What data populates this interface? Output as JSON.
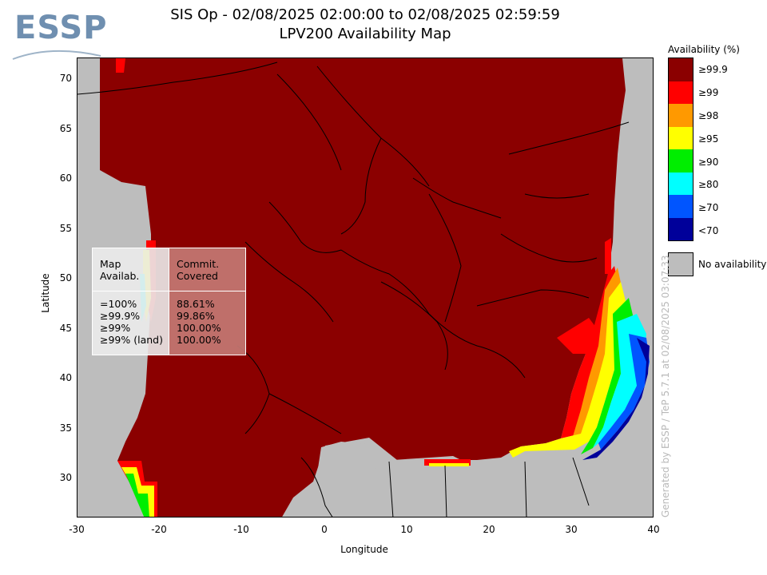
{
  "logo": {
    "text": "ESSP"
  },
  "title": {
    "line1": "SIS Op - 02/08/2025 02:00:00 to 02/08/2025 02:59:59",
    "line2": "LPV200 Availability Map"
  },
  "axes": {
    "xlabel": "Longitude",
    "ylabel": "Latitude",
    "xticks": [
      "-30",
      "-20",
      "-10",
      "0",
      "10",
      "20",
      "30",
      "40"
    ],
    "yticks": [
      "70",
      "65",
      "60",
      "55",
      "50",
      "45",
      "40",
      "35",
      "30"
    ],
    "xlim": [
      -30,
      40
    ],
    "ylim": [
      26,
      72
    ]
  },
  "stats_box": {
    "left_header": [
      "Map",
      "Availab."
    ],
    "right_header": [
      "Commit.",
      "Covered"
    ],
    "rows": [
      {
        "label": "=100%",
        "value": "88.61%"
      },
      {
        "label": "≥99.9%",
        "value": "99.86%"
      },
      {
        "label": "≥99%",
        "value": "100.00%"
      },
      {
        "label": "≥99% (land)",
        "value": "100.00%"
      }
    ]
  },
  "legend": {
    "title": "Availability (%)",
    "items": [
      {
        "label": "≥99.9",
        "color": "#8b0000"
      },
      {
        "label": "≥99",
        "color": "#ff0000"
      },
      {
        "label": "≥98",
        "color": "#ff9900"
      },
      {
        "label": "≥95",
        "color": "#ffff00"
      },
      {
        "label": "≥90",
        "color": "#00ee00"
      },
      {
        "label": "≥80",
        "color": "#00ffff"
      },
      {
        "label": "≥70",
        "color": "#0055ff"
      },
      {
        "label": "<70",
        "color": "#00009a"
      }
    ],
    "no_availability": {
      "label": "No availability",
      "color": "#bdbdbd"
    }
  },
  "credit": "Generated by ESSP / TeP 5.7.1 at 02/08/2025 03:07:33"
}
